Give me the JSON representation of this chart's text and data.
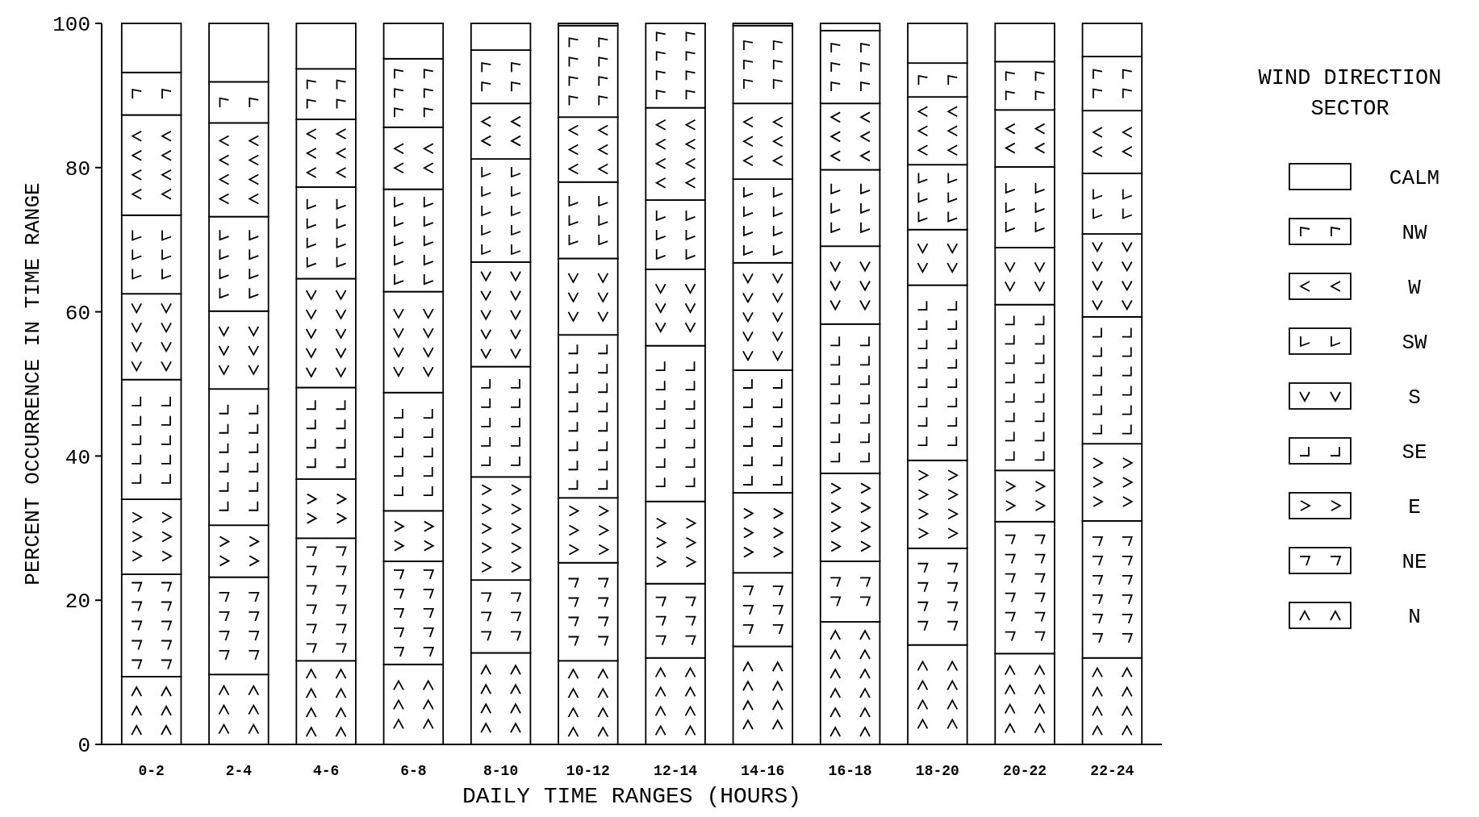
{
  "chart_data": {
    "type": "bar",
    "stacked": true,
    "xlabel": "DAILY TIME RANGES (HOURS)",
    "ylabel": "PERCENT OCCURRENCE IN TIME RANGE",
    "legend_title": "WIND DIRECTION SECTOR",
    "legend": "right",
    "grid": false,
    "categories": [
      "0-2",
      "2-4",
      "4-6",
      "6-8",
      "8-10",
      "10-12",
      "12-14",
      "14-16",
      "16-18",
      "18-20",
      "20-22",
      "22-24"
    ],
    "ylim": [
      0,
      100
    ],
    "yticks": [
      {
        "value": 0,
        "label": "0"
      },
      20,
      40,
      60,
      80,
      100
    ],
    "series": [
      {
        "name": "N",
        "color": "#ffffff",
        "values": [
          9.4,
          9.7,
          11.6,
          11.1,
          12.7,
          11.6,
          12.0,
          13.6,
          17.0,
          13.8,
          12.6,
          12.0
        ]
      },
      {
        "name": "NE",
        "color": "#ffffff",
        "values": [
          14.2,
          13.5,
          17.0,
          14.3,
          10.1,
          13.6,
          10.3,
          10.2,
          8.4,
          13.4,
          18.3,
          19.0
        ]
      },
      {
        "name": "E",
        "color": "#ffffff",
        "values": [
          10.4,
          7.2,
          8.2,
          7.0,
          14.3,
          9.0,
          11.4,
          11.1,
          12.2,
          12.2,
          7.1,
          10.7
        ]
      },
      {
        "name": "SE",
        "color": "#ffffff",
        "values": [
          16.6,
          18.9,
          12.7,
          16.4,
          15.3,
          22.6,
          21.6,
          17.0,
          20.7,
          24.3,
          23.0,
          17.6
        ]
      },
      {
        "name": "S",
        "color": "#ffffff",
        "values": [
          11.9,
          10.8,
          15.1,
          14.0,
          14.5,
          10.6,
          10.6,
          14.9,
          10.8,
          7.7,
          7.9,
          11.5
        ]
      },
      {
        "name": "SW",
        "color": "#ffffff",
        "values": [
          10.9,
          13.1,
          12.7,
          14.2,
          14.3,
          10.6,
          9.6,
          11.6,
          10.6,
          9.0,
          11.2,
          8.4
        ]
      },
      {
        "name": "W",
        "color": "#ffffff",
        "values": [
          13.9,
          13.0,
          9.4,
          8.6,
          7.7,
          9.0,
          12.8,
          10.5,
          9.2,
          9.4,
          7.9,
          8.7
        ]
      },
      {
        "name": "NW",
        "color": "#ffffff",
        "values": [
          5.9,
          5.7,
          7.0,
          9.5,
          7.4,
          12.7,
          11.7,
          10.8,
          10.1,
          4.7,
          6.7,
          7.5
        ]
      },
      {
        "name": "CALM",
        "color": "#ffffff",
        "values": [
          6.8,
          8.1,
          6.3,
          4.9,
          3.7,
          0.3,
          0,
          0.3,
          1.0,
          5.5,
          5.3,
          4.6
        ]
      }
    ]
  }
}
